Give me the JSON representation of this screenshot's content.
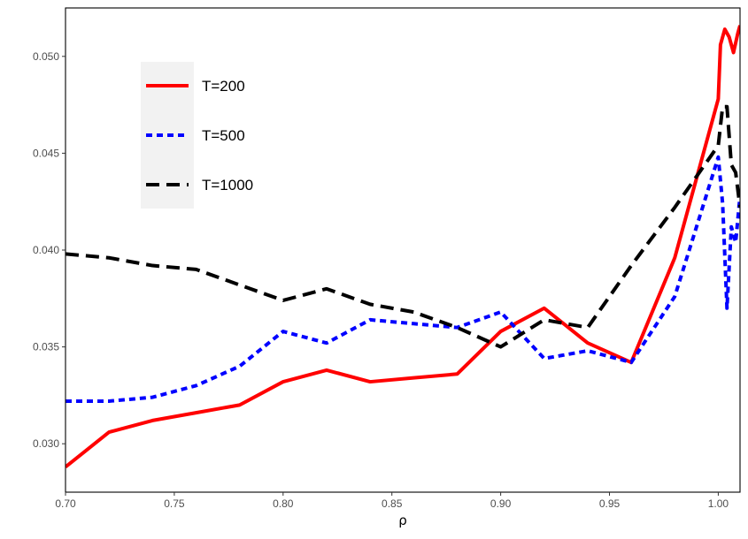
{
  "chart_data": {
    "type": "line",
    "title": "",
    "xlabel": "ρ",
    "ylabel": "",
    "xlim": [
      0.7,
      1.01
    ],
    "ylim": [
      0.0275,
      0.0525
    ],
    "xticks": [
      0.7,
      0.75,
      0.8,
      0.85,
      0.9,
      0.95,
      1.0
    ],
    "xtick_labels": [
      "0.70",
      "0.75",
      "0.80",
      "0.85",
      "0.90",
      "0.95",
      "1.00"
    ],
    "yticks": [
      0.03,
      0.035,
      0.04,
      0.045,
      0.05
    ],
    "ytick_labels": [
      "0.030",
      "0.035",
      "0.040",
      "0.045",
      "0.050"
    ],
    "grid": false,
    "legend_position": "top-left",
    "series": [
      {
        "name": "T=200",
        "color": "#ff0000",
        "dash": "solid",
        "x": [
          0.7,
          0.72,
          0.74,
          0.76,
          0.78,
          0.8,
          0.82,
          0.84,
          0.86,
          0.88,
          0.9,
          0.92,
          0.94,
          0.96,
          0.98,
          1.0,
          1.001,
          1.003,
          1.005,
          1.007,
          1.009,
          1.01
        ],
        "y": [
          0.0288,
          0.0306,
          0.0312,
          0.0316,
          0.032,
          0.0332,
          0.0338,
          0.0332,
          0.0334,
          0.0336,
          0.0358,
          0.037,
          0.0352,
          0.0342,
          0.0396,
          0.0478,
          0.0506,
          0.0514,
          0.051,
          0.0502,
          0.0512,
          0.0516
        ]
      },
      {
        "name": "T=500",
        "color": "#0000ff",
        "dash": "dotted",
        "x": [
          0.7,
          0.72,
          0.74,
          0.76,
          0.78,
          0.8,
          0.82,
          0.84,
          0.86,
          0.88,
          0.9,
          0.92,
          0.94,
          0.96,
          0.98,
          1.0,
          1.002,
          1.004,
          1.006,
          1.008,
          1.01
        ],
        "y": [
          0.0322,
          0.0322,
          0.0324,
          0.033,
          0.034,
          0.0358,
          0.0352,
          0.0364,
          0.0362,
          0.036,
          0.0368,
          0.0344,
          0.0348,
          0.0342,
          0.0376,
          0.0448,
          0.0424,
          0.037,
          0.0412,
          0.0404,
          0.0428
        ]
      },
      {
        "name": "T=1000",
        "color": "#000000",
        "dash": "dashed",
        "x": [
          0.7,
          0.72,
          0.74,
          0.76,
          0.78,
          0.8,
          0.82,
          0.84,
          0.86,
          0.88,
          0.9,
          0.92,
          0.94,
          0.96,
          0.98,
          1.0,
          1.002,
          1.004,
          1.006,
          1.008,
          1.01
        ],
        "y": [
          0.0398,
          0.0396,
          0.0392,
          0.039,
          0.0382,
          0.0374,
          0.038,
          0.0372,
          0.0368,
          0.036,
          0.035,
          0.0364,
          0.036,
          0.0392,
          0.0422,
          0.0454,
          0.0474,
          0.0474,
          0.0444,
          0.044,
          0.0422
        ]
      }
    ]
  }
}
